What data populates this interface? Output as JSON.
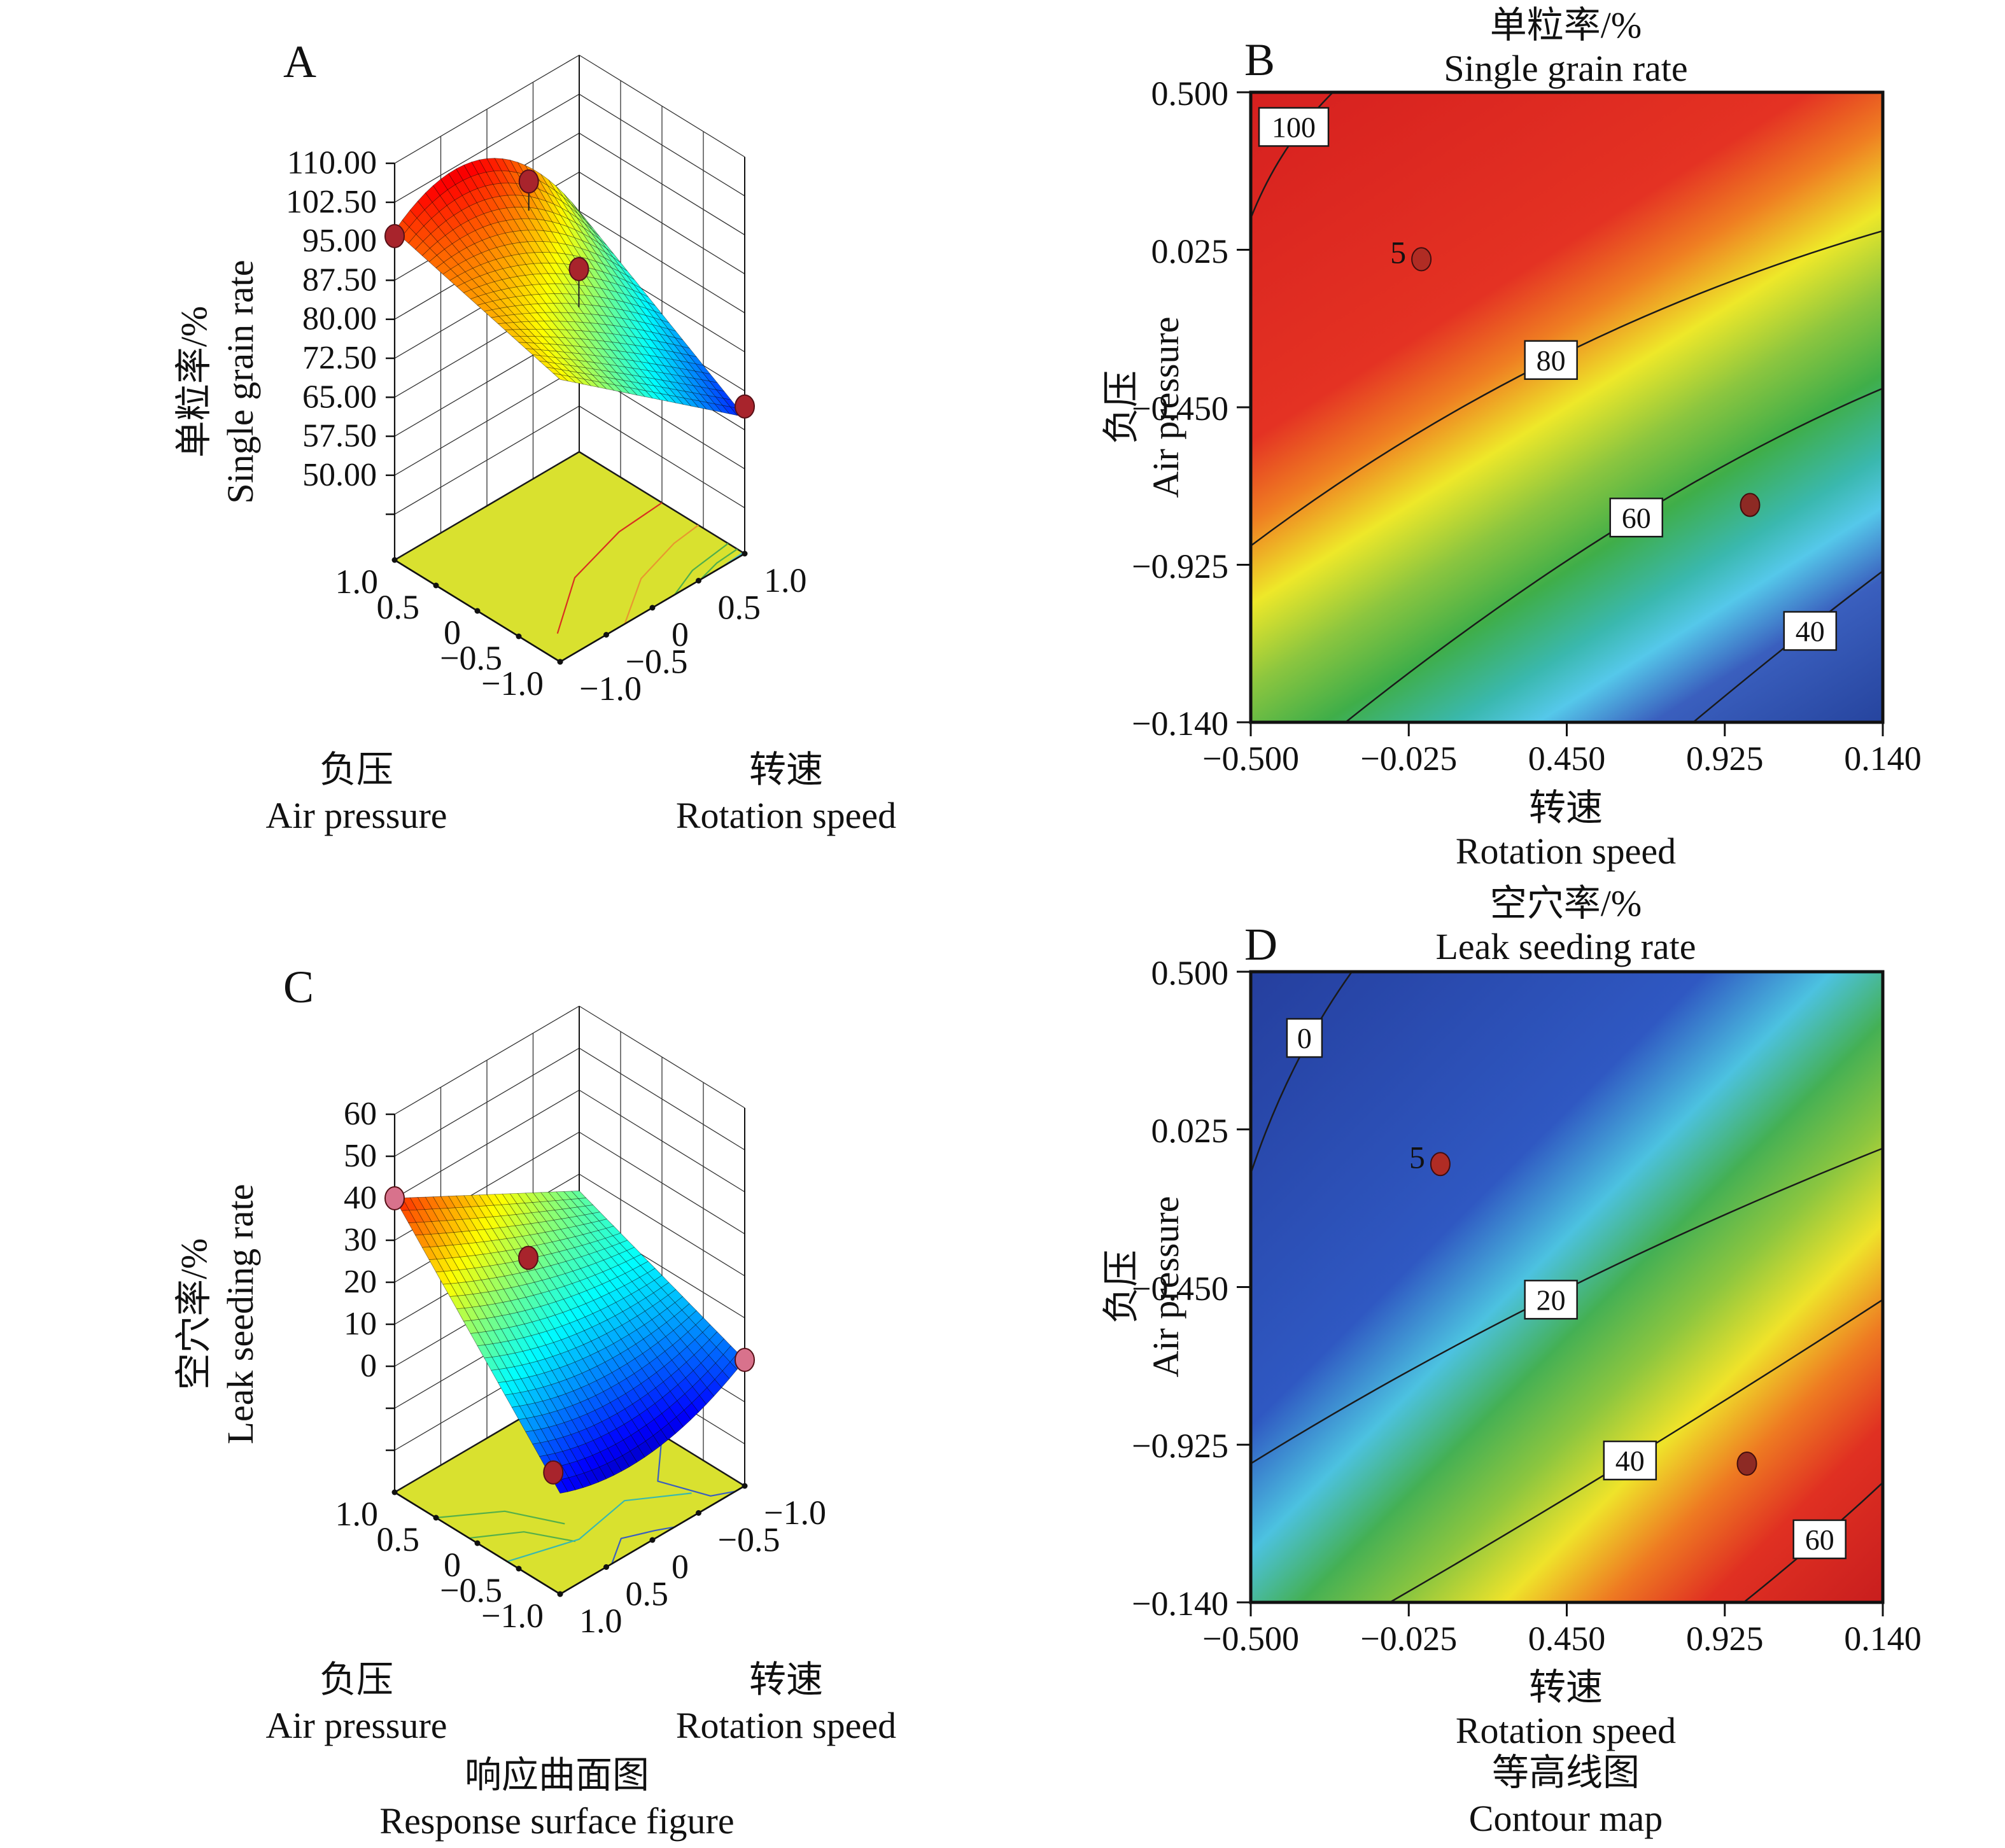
{
  "captions": {
    "surface_zh": "响应曲面图",
    "surface_en": "Response surface figure",
    "contour_zh": "等高线图",
    "contour_en": "Contour map"
  },
  "panels": {
    "a": {
      "letter": "A",
      "value_title_zh": "单粒率/%",
      "value_title_en": "Single grain rate",
      "air_axis": {
        "title_zh": "负压",
        "title_en": "Air pressure",
        "ticks": [
          "1.0",
          "0.5",
          "0",
          "−0.5",
          "−1.0"
        ]
      },
      "speed_axis": {
        "title_zh": "转速",
        "title_en": "Rotation speed",
        "ticks": [
          "−1.0",
          "−0.5",
          "0",
          "0.5",
          "1.0"
        ]
      },
      "value_ticks": [
        "110.00",
        "102.50",
        "95.00",
        "87.50",
        "80.00",
        "72.50",
        "65.00",
        "57.50",
        "50.00"
      ]
    },
    "b": {
      "letter": "B",
      "title_zh": "单粒率/%",
      "title_en": "Single grain rate",
      "x_axis": {
        "title_zh": "转速",
        "title_en": "Rotation speed",
        "ticks": [
          "−0.500",
          "−0.025",
          "0.450",
          "0.925",
          "0.140"
        ]
      },
      "y_axis": {
        "title_zh": "负压",
        "title_en": "Air pressure",
        "ticks": [
          "0.500",
          "0.025",
          "−0.450",
          "−0.925",
          "−0.140"
        ]
      }
    },
    "c": {
      "letter": "C",
      "value_title_zh": "空穴率/%",
      "value_title_en": "Leak seeding rate",
      "air_axis": {
        "title_zh": "负压",
        "title_en": "Air pressure",
        "ticks": [
          "1.0",
          "0.5",
          "0",
          "−0.5",
          "−1.0"
        ]
      },
      "speed_axis": {
        "title_zh": "转速",
        "title_en": "Rotation speed",
        "ticks": [
          "1.0",
          "0.5",
          "0",
          "−0.5",
          "−1.0"
        ]
      },
      "value_ticks": [
        "60",
        "50",
        "40",
        "30",
        "20",
        "10",
        "0"
      ]
    },
    "d": {
      "letter": "D",
      "title_zh": "空穴率/%",
      "title_en": "Leak seeding rate",
      "x_axis": {
        "title_zh": "转速",
        "title_en": "Rotation speed",
        "ticks": [
          "−0.500",
          "−0.025",
          "0.450",
          "0.925",
          "0.140"
        ]
      },
      "y_axis": {
        "title_zh": "负压",
        "title_en": "Air pressure",
        "ticks": [
          "0.500",
          "0.025",
          "−0.450",
          "−0.925",
          "−0.140"
        ]
      }
    }
  },
  "chart_data": [
    {
      "id": "A",
      "type": "surface",
      "response": "单粒率 Single grain rate (%)",
      "z_range": [
        50,
        110
      ],
      "z_tick_step": 7.5,
      "speed_range": [
        -1,
        1
      ],
      "air_range": [
        -1,
        1
      ],
      "corner_values": {
        "speed-1_air1": 97,
        "speed1_air1": 80,
        "speed-1_air-1": 88,
        "speed1_air-1": 60
      },
      "crest_bump": 12,
      "colormap": "jet",
      "colormap_range": [
        52,
        108
      ],
      "floor_color": "#d9e12f",
      "data_points": [
        {
          "speed": -1,
          "air": 1,
          "value": 96,
          "color": "#a8242c"
        },
        {
          "speed": 0.05,
          "air": 0.55,
          "value": 100,
          "color": "#a8242c",
          "dropline": 46
        },
        {
          "speed": 0.1,
          "air": 0,
          "value": 88,
          "color": "#a8242c",
          "dropline": 60
        },
        {
          "speed": 1,
          "air": -1,
          "value": 62,
          "color": "#a8242c"
        }
      ],
      "floor_contours": [
        {
          "color": "#d93020",
          "pts": [
            [
              0.85,
              0.12
            ],
            [
              0.62,
              0.42
            ],
            [
              0.52,
              0.75
            ],
            [
              0.5,
              1
            ]
          ]
        },
        {
          "color": "#e8972f",
          "pts": [
            [
              1,
              0.35
            ],
            [
              0.82,
              0.6
            ],
            [
              0.74,
              0.85
            ],
            [
              0.72,
              1
            ]
          ]
        },
        {
          "color": "#4fae4c",
          "pts": [
            [
              1,
              0.62
            ],
            [
              0.93,
              0.78
            ],
            [
              0.9,
              1
            ]
          ]
        },
        {
          "color": "#4fae4c",
          "pts": [
            [
              1,
              0.76
            ],
            [
              0.965,
              0.88
            ],
            [
              0.955,
              1
            ]
          ]
        },
        {
          "color": "#53c0cf",
          "pts": [
            [
              1,
              0.88
            ],
            [
              0.99,
              1
            ]
          ]
        }
      ]
    },
    {
      "id": "B",
      "type": "contour",
      "response": "单粒率 Single grain rate (%)",
      "x_tick_values": [
        -0.5,
        -0.025,
        0.45,
        0.925,
        0.14
      ],
      "y_tick_values": [
        0.5,
        0.025,
        -0.45,
        -0.925,
        -0.14
      ],
      "gradient_angle_deg": 148,
      "gradient_stops": [
        [
          0,
          "#d6201f"
        ],
        [
          0.34,
          "#e43223"
        ],
        [
          0.42,
          "#ef7e22"
        ],
        [
          0.5,
          "#eee829"
        ],
        [
          0.58,
          "#8cc63f"
        ],
        [
          0.66,
          "#3fae49"
        ],
        [
          0.74,
          "#3ab8ae"
        ],
        [
          0.79,
          "#55c8ea"
        ],
        [
          0.86,
          "#3a5fbe"
        ],
        [
          1,
          "#26449e"
        ]
      ],
      "contours": [
        {
          "level": "100",
          "path": [
            [
              0,
              0.2
            ],
            [
              0.045,
              0.085
            ],
            [
              0.13,
              0
            ]
          ],
          "label_at": [
            0.068,
            0.055
          ]
        },
        {
          "level": "80",
          "path": [
            [
              0,
              0.72
            ],
            [
              0.45,
              0.38
            ],
            [
              1,
              0.22
            ]
          ],
          "label_at": [
            0.475,
            0.425
          ]
        },
        {
          "level": "60",
          "path": [
            [
              0.15,
              1
            ],
            [
              0.6,
              0.64
            ],
            [
              1,
              0.47
            ]
          ],
          "label_at": [
            0.61,
            0.675
          ]
        },
        {
          "level": "40",
          "path": [
            [
              0.7,
              1
            ],
            [
              0.88,
              0.85
            ],
            [
              1,
              0.76
            ]
          ],
          "label_at": [
            0.885,
            0.855
          ]
        }
      ],
      "points": [
        {
          "x": 0.27,
          "y": 0.265,
          "label": "5",
          "color": "#b02c24"
        },
        {
          "x": 0.79,
          "y": 0.655,
          "color": "#8d2a24"
        }
      ]
    },
    {
      "id": "C",
      "type": "surface",
      "response": "空穴率 Leak seeding rate (%)",
      "z_range": [
        0,
        60
      ],
      "z_tick_step": 10,
      "speed_range": [
        -1,
        1
      ],
      "air_range": [
        -1,
        1
      ],
      "corner_values": {
        "speed1_air1": 40,
        "speed-1_air1": 16,
        "speed1_air-1": -6,
        "speed-1_air-1": 0
      },
      "bowl_bump": -6,
      "colormap": "jet",
      "colormap_range": [
        -14,
        50
      ],
      "floor_color": "#d9e12f",
      "data_points": [
        {
          "speed": 1,
          "air": 1,
          "value": 40,
          "color": "#d8728c"
        },
        {
          "speed": 0,
          "air": 0.5,
          "value": 19,
          "color": "#a8242c"
        },
        {
          "speed": 0.85,
          "air": -0.75,
          "value": -6,
          "color": "#a8242c"
        },
        {
          "speed": -1,
          "air": -1,
          "value": 0,
          "color": "#d8728c"
        }
      ],
      "floor_contours": [
        {
          "color": "#55b04a",
          "pts": [
            [
              0.25,
              0
            ],
            [
              0.42,
              0.22
            ],
            [
              0.66,
              0.33
            ]
          ]
        },
        {
          "color": "#55b04a",
          "pts": [
            [
              0.45,
              0
            ],
            [
              0.58,
              0.18
            ],
            [
              0.78,
              0.28
            ]
          ]
        },
        {
          "color": "#3ab8ae",
          "pts": [
            [
              0.68,
              0
            ],
            [
              0.78,
              0.3
            ],
            [
              0.72,
              0.6
            ],
            [
              0.88,
              0.82
            ]
          ]
        },
        {
          "color": "#3a5fbe",
          "pts": [
            [
              0.5,
              1
            ],
            [
              0.72,
              0.78
            ],
            [
              0.95,
              0.86
            ],
            [
              1,
              0.95
            ]
          ]
        },
        {
          "color": "#3a5fbe",
          "pts": [
            [
              1,
              0.28
            ],
            [
              0.9,
              0.42
            ],
            [
              0.96,
              0.55
            ],
            [
              1,
              0.62
            ]
          ]
        }
      ]
    },
    {
      "id": "D",
      "type": "contour",
      "response": "空穴率 Leak seeding rate (%)",
      "x_tick_values": [
        -0.5,
        -0.025,
        0.45,
        0.925,
        0.14
      ],
      "y_tick_values": [
        0.5,
        0.025,
        -0.45,
        -0.925,
        -0.14
      ],
      "gradient_angle_deg": 135,
      "gradient_stops": [
        [
          0,
          "#253f9e"
        ],
        [
          0.36,
          "#2f58c2"
        ],
        [
          0.46,
          "#4cc2e0"
        ],
        [
          0.54,
          "#44b054"
        ],
        [
          0.62,
          "#8cc63f"
        ],
        [
          0.7,
          "#efe32a"
        ],
        [
          0.78,
          "#ee7a22"
        ],
        [
          0.86,
          "#e03022"
        ],
        [
          1,
          "#c81e1e"
        ]
      ],
      "contours": [
        {
          "level": "0",
          "path": [
            [
              0,
              0.32
            ],
            [
              0.06,
              0.14
            ],
            [
              0.16,
              0
            ]
          ],
          "label_at": [
            0.085,
            0.105
          ]
        },
        {
          "level": "20",
          "path": [
            [
              0,
              0.78
            ],
            [
              0.45,
              0.5
            ],
            [
              1,
              0.28
            ]
          ],
          "label_at": [
            0.475,
            0.52
          ]
        },
        {
          "level": "40",
          "path": [
            [
              0.22,
              1
            ],
            [
              0.6,
              0.78
            ],
            [
              1,
              0.52
            ]
          ],
          "label_at": [
            0.6,
            0.775
          ]
        },
        {
          "level": "60",
          "path": [
            [
              0.78,
              1
            ],
            [
              0.91,
              0.895
            ],
            [
              1,
              0.81
            ]
          ],
          "label_at": [
            0.9,
            0.9
          ]
        }
      ],
      "points": [
        {
          "x": 0.3,
          "y": 0.305,
          "label": "5",
          "color": "#b02c24"
        },
        {
          "x": 0.785,
          "y": 0.78,
          "color": "#8d2a24"
        }
      ]
    }
  ]
}
